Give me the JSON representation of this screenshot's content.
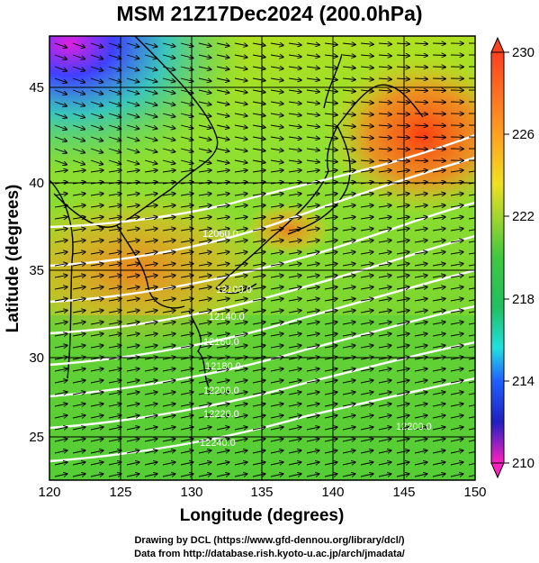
{
  "title": "MSM 21Z17Dec2024 (200.0hPa)",
  "credits": {
    "line1": "Drawing by DCL (https://www.gfd-dennou.org/library/dcl/)",
    "line2": "Data from http://database.rish.kyoto-u.ac.jp/arch/jmadata/"
  },
  "map": {
    "xlabel": "Longitude (degrees)",
    "ylabel": "Latitude  (degrees)",
    "lon_range": [
      120,
      150
    ],
    "lat_range": [
      22.4,
      47.6
    ],
    "lon_ticks": [
      "120",
      "125",
      "130",
      "135",
      "140",
      "145",
      "150"
    ],
    "lat_ticks": [
      "25",
      "30",
      "35",
      "40",
      "45"
    ],
    "grid": true,
    "shaded_variable_range": [
      210,
      230
    ],
    "contour_labels": [
      "12060.0",
      "12100.0",
      "12140.0",
      "12160.0",
      "12180.0",
      "12200.0",
      "12220.0",
      "12240.0",
      "12200.0"
    ]
  },
  "colorbar": {
    "ticks": [
      "230",
      "226",
      "222",
      "218",
      "214",
      "210"
    ]
  },
  "colors": {
    "warm": "#ff6020",
    "mid": "#40c040",
    "cool": "#2040ff",
    "contour": "#ffffff"
  }
}
